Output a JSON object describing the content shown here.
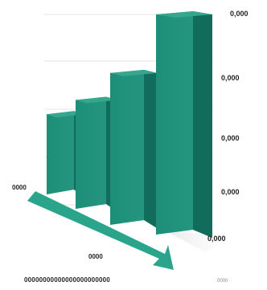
{
  "chart_data": {
    "type": "bar",
    "categories": [
      "",
      "",
      "",
      ""
    ],
    "values": [
      2.1,
      2.9,
      4.1,
      6.0
    ],
    "title": "",
    "xlabel": "",
    "ylabel": "",
    "ylim": [
      0,
      6
    ],
    "y_tick_labels": [
      "0,000",
      "0,000",
      "0,000",
      "0,000",
      "0,000"
    ],
    "axis_start_label": "0000",
    "arrow_label": "0000",
    "footer_text": "00000000000000000000000",
    "footer_right_text": "0000",
    "grid": true,
    "colors": {
      "bar_front": "#1f8f78",
      "bar_side": "#126c5b",
      "bar_top": "#36a78e",
      "arrow": "#2aa58c",
      "grid": "#e4e4e4",
      "shadow": "#cfcfcf"
    }
  }
}
